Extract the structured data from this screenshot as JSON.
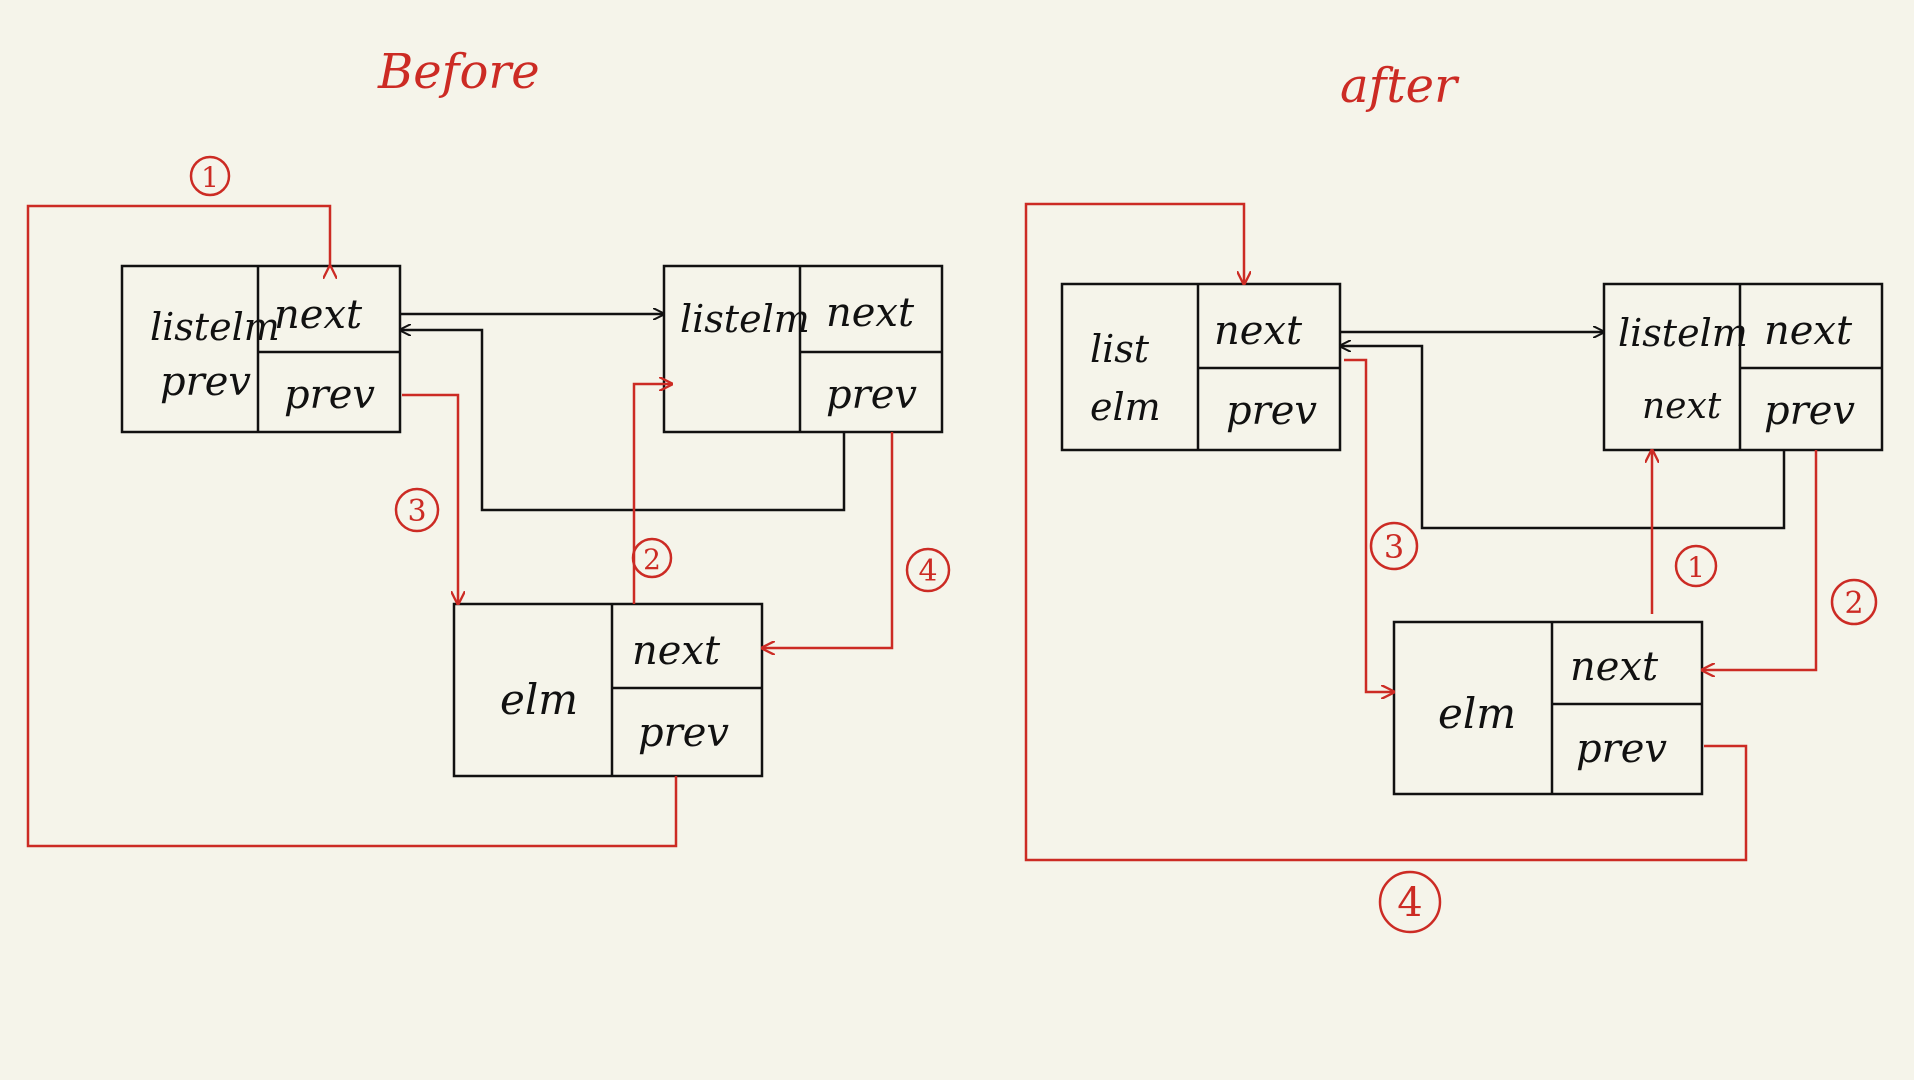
{
  "colors": {
    "background": "#f5f4ea",
    "ink": "#111111",
    "annotation_red": "#cc2b24"
  },
  "titles": {
    "before": "Before",
    "after": "after"
  },
  "before": {
    "list_node": {
      "left_label_line1": "listelm",
      "left_label_line2": "prev",
      "next_label": "next",
      "prev_label": "prev"
    },
    "listelm_node": {
      "left_label_line1": "listelm",
      "next_label": "next",
      "prev_label": "prev"
    },
    "elm_node": {
      "left_label": "elm",
      "next_label": "next",
      "prev_label": "prev"
    },
    "step_markers": [
      "1",
      "2",
      "3",
      "4"
    ]
  },
  "after": {
    "list_node": {
      "left_label_line1": "list",
      "left_label_line2": "elm",
      "next_label": "next",
      "prev_label": "prev"
    },
    "listelm_node": {
      "left_label_line1": "listelm",
      "left_label_line2": "next",
      "next_label": "next",
      "prev_label": "prev"
    },
    "elm_node": {
      "left_label": "elm",
      "next_label": "next",
      "prev_label": "prev"
    },
    "step_markers": [
      "1",
      "2",
      "3",
      "4"
    ]
  }
}
